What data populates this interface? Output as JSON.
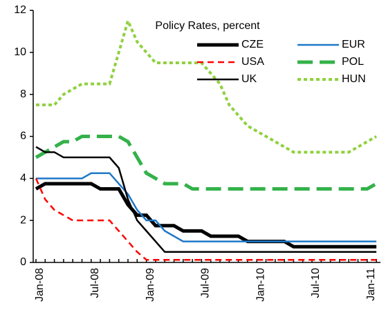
{
  "chart_data": {
    "type": "line",
    "title": "Policy Rates, percent",
    "categories": [
      "Jan-08",
      null,
      null,
      null,
      null,
      null,
      "Jul-08",
      null,
      null,
      null,
      null,
      null,
      "Jan-09",
      null,
      null,
      null,
      null,
      null,
      "Jul-09",
      null,
      null,
      null,
      null,
      null,
      "Jan-10",
      null,
      null,
      null,
      null,
      null,
      "Jul-10",
      null,
      null,
      null,
      null,
      null,
      "Jan-11",
      null
    ],
    "ylim": [
      0,
      12
    ],
    "yticks": [
      0,
      2,
      4,
      6,
      8,
      10,
      12
    ],
    "series": [
      {
        "name": "CZE",
        "color": "#000000",
        "width": 5,
        "dash": "none",
        "values": [
          3.5,
          3.75,
          3.75,
          3.75,
          3.75,
          3.75,
          3.75,
          3.5,
          3.5,
          3.5,
          2.75,
          2.25,
          2.25,
          1.75,
          1.75,
          1.75,
          1.5,
          1.5,
          1.5,
          1.25,
          1.25,
          1.25,
          1.25,
          1.0,
          1.0,
          1.0,
          1.0,
          1.0,
          0.75,
          0.75,
          0.75,
          0.75,
          0.75,
          0.75,
          0.75,
          0.75,
          0.75,
          0.75
        ]
      },
      {
        "name": "EUR",
        "color": "#1f78c8",
        "width": 2.5,
        "dash": "none",
        "values": [
          4.0,
          4.0,
          4.0,
          4.0,
          4.0,
          4.0,
          4.25,
          4.25,
          4.25,
          3.75,
          3.25,
          2.5,
          2.0,
          2.0,
          1.5,
          1.25,
          1.0,
          1.0,
          1.0,
          1.0,
          1.0,
          1.0,
          1.0,
          1.0,
          1.0,
          1.0,
          1.0,
          1.0,
          1.0,
          1.0,
          1.0,
          1.0,
          1.0,
          1.0,
          1.0,
          1.0,
          1.0,
          1.0
        ]
      },
      {
        "name": "USA",
        "color": "#ff0000",
        "width": 2.5,
        "dash": "9 6",
        "values": [
          4.0,
          3.0,
          2.5,
          2.25,
          2.0,
          2.0,
          2.0,
          2.0,
          2.0,
          1.5,
          1.0,
          0.5,
          0.125,
          0.125,
          0.125,
          0.125,
          0.125,
          0.125,
          0.125,
          0.125,
          0.125,
          0.125,
          0.125,
          0.125,
          0.125,
          0.125,
          0.125,
          0.125,
          0.125,
          0.125,
          0.125,
          0.125,
          0.125,
          0.125,
          0.125,
          0.125,
          0.125,
          0.125
        ]
      },
      {
        "name": "POL",
        "color": "#33b24a",
        "width": 5,
        "dash": "22 10",
        "values": [
          5.0,
          5.25,
          5.5,
          5.75,
          5.75,
          6.0,
          6.0,
          6.0,
          6.0,
          6.0,
          5.75,
          5.0,
          4.25,
          4.0,
          3.75,
          3.75,
          3.75,
          3.5,
          3.5,
          3.5,
          3.5,
          3.5,
          3.5,
          3.5,
          3.5,
          3.5,
          3.5,
          3.5,
          3.5,
          3.5,
          3.5,
          3.5,
          3.5,
          3.5,
          3.5,
          3.5,
          3.5,
          3.75
        ]
      },
      {
        "name": "UK",
        "color": "#000000",
        "width": 2.5,
        "dash": "none",
        "values": [
          5.5,
          5.25,
          5.25,
          5.0,
          5.0,
          5.0,
          5.0,
          5.0,
          5.0,
          4.5,
          3.0,
          2.0,
          1.5,
          1.0,
          0.5,
          0.5,
          0.5,
          0.5,
          0.5,
          0.5,
          0.5,
          0.5,
          0.5,
          0.5,
          0.5,
          0.5,
          0.5,
          0.5,
          0.5,
          0.5,
          0.5,
          0.5,
          0.5,
          0.5,
          0.5,
          0.5,
          0.5,
          0.5
        ]
      },
      {
        "name": "HUN",
        "color": "#8fd13f",
        "width": 4,
        "dash": "5 4",
        "values": [
          7.5,
          7.5,
          7.5,
          8.0,
          8.25,
          8.5,
          8.5,
          8.5,
          8.5,
          10.0,
          11.5,
          10.5,
          10.0,
          9.5,
          9.5,
          9.5,
          9.5,
          9.5,
          9.5,
          9.0,
          8.5,
          7.5,
          7.0,
          6.5,
          6.25,
          6.0,
          5.75,
          5.5,
          5.25,
          5.25,
          5.25,
          5.25,
          5.25,
          5.25,
          5.25,
          5.5,
          5.75,
          6.0
        ]
      }
    ]
  }
}
